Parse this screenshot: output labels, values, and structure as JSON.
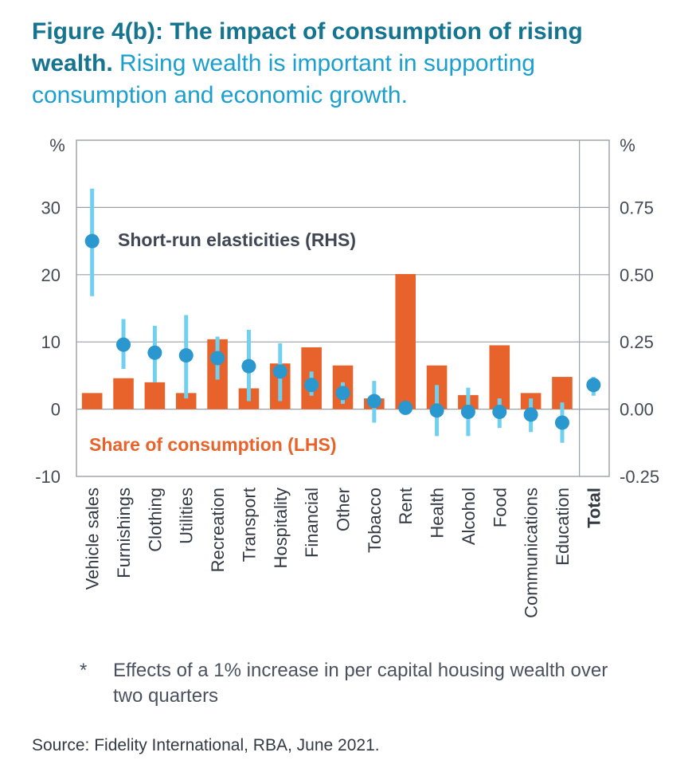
{
  "title": {
    "bold": "Figure 4(b): The impact of consumption of rising wealth.",
    "rest": "Rising wealth is important in supporting consumption and economic growth."
  },
  "chart_data": {
    "type": "bar",
    "categories": [
      "Vehicle sales",
      "Furnishings",
      "Clothing",
      "Utilities",
      "Recreation",
      "Transport",
      "Hospitality",
      "Financial",
      "Other",
      "Tobacco",
      "Rent",
      "Health",
      "Alcohol",
      "Food",
      "Communications",
      "Education",
      "Total"
    ],
    "series": [
      {
        "name": "Share of consumption (LHS)",
        "axis": "left",
        "type": "bar",
        "values": [
          2.4,
          4.6,
          4.0,
          2.4,
          10.4,
          3.1,
          6.8,
          9.2,
          6.5,
          1.6,
          20.1,
          6.5,
          2.1,
          9.5,
          2.4,
          4.8,
          null
        ]
      },
      {
        "name": "Short-run elasticities (RHS)",
        "axis": "right",
        "type": "scatter",
        "values": [
          0.625,
          0.24,
          0.21,
          0.2,
          0.19,
          0.16,
          0.14,
          0.09,
          0.06,
          0.03,
          0.005,
          -0.005,
          -0.01,
          -0.01,
          -0.02,
          -0.05,
          0.09
        ],
        "error_low": [
          0.42,
          0.15,
          0.1,
          0.04,
          0.11,
          0.03,
          0.03,
          0.05,
          0.02,
          -0.05,
          0.005,
          -0.1,
          -0.1,
          -0.07,
          -0.085,
          -0.125,
          0.05
        ],
        "error_high": [
          0.82,
          0.335,
          0.31,
          0.35,
          0.27,
          0.295,
          0.245,
          0.14,
          0.1,
          0.105,
          0.005,
          0.09,
          0.08,
          0.04,
          0.04,
          0.025,
          0.12
        ]
      }
    ],
    "left_axis": {
      "unit": "%",
      "ylim": [
        -10,
        40
      ],
      "ticks": [
        30,
        20,
        10,
        0,
        -10
      ]
    },
    "right_axis": {
      "unit": "%",
      "ylim": [
        -0.25,
        1.0
      ],
      "ticks": [
        "0.75",
        "0.50",
        "0.25",
        "0.00",
        "-0.25"
      ]
    },
    "annotations": {
      "rhs_label": "Short-run elasticities (RHS)",
      "lhs_label": "Share of consumption (LHS)"
    },
    "grid": true,
    "total_category_bold": true
  },
  "colors": {
    "bar": "#e8632b",
    "dot": "#2a97cf",
    "whisker": "#6fd0ef",
    "grid": "#9aa0a8",
    "title_bold": "#15748f",
    "title_rest": "#1a9fcf",
    "rhs_label": "#3f4754",
    "lhs_label": "#e8632b"
  },
  "footnote": {
    "marker": "*",
    "text": "Effects of a 1% increase in per capital housing wealth over two quarters"
  },
  "source": "Source: Fidelity International, RBA, June 2021."
}
